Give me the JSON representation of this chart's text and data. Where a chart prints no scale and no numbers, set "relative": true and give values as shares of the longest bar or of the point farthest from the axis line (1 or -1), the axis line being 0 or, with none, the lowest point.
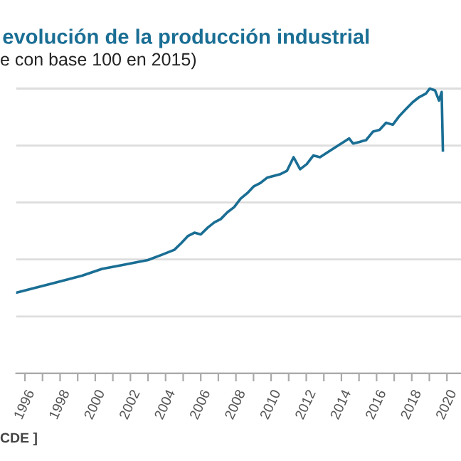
{
  "chart_data": {
    "type": "line",
    "title": "evolución de la producción industrial",
    "subtitle": "e con base 100 en 2015)",
    "annotations": [
      "CDE ]"
    ],
    "relative": true,
    "x": [
      1995.5,
      1996.24,
      1997.74,
      1999.25,
      2000.38,
      2001.5,
      2003.0,
      2003.76,
      2004.5,
      2004.9,
      2005.26,
      2005.64,
      2006.0,
      2006.4,
      2006.77,
      2007.14,
      2007.52,
      2007.9,
      2008.27,
      2008.65,
      2009.02,
      2009.4,
      2009.77,
      2010.5,
      2010.9,
      2011.28,
      2011.65,
      2012.03,
      2012.4,
      2012.78,
      2013.53,
      2014.29,
      2014.44,
      2014.66,
      2015.04,
      2015.4,
      2015.8,
      2016.17,
      2016.54,
      2016.92,
      2017.3,
      2017.67,
      2018.05,
      2018.42,
      2018.8,
      2019.02,
      2019.32,
      2019.55,
      2019.7,
      2019.77
    ],
    "series": [
      {
        "color": "#1a6e94",
        "values": [
          0.283,
          0.295,
          0.319,
          0.343,
          0.367,
          0.38,
          0.398,
          0.416,
          0.434,
          0.458,
          0.482,
          0.494,
          0.488,
          0.512,
          0.53,
          0.542,
          0.566,
          0.584,
          0.614,
          0.633,
          0.657,
          0.669,
          0.687,
          0.699,
          0.711,
          0.759,
          0.717,
          0.735,
          0.765,
          0.759,
          0.789,
          0.819,
          0.825,
          0.807,
          0.813,
          0.819,
          0.849,
          0.855,
          0.88,
          0.873,
          0.904,
          0.928,
          0.952,
          0.97,
          0.982,
          1.0,
          0.994,
          0.958,
          0.988,
          0.783
        ]
      }
    ],
    "xlim": [
      1995.5,
      2020.8
    ],
    "xticks": [
      1996,
      {
        "value": 1997,
        "label": null
      },
      1998,
      {
        "value": 1999,
        "label": null
      },
      2000,
      {
        "value": 2001,
        "label": null
      },
      2002,
      {
        "value": 2003,
        "label": null
      },
      2004,
      {
        "value": 2005,
        "label": null
      },
      2006,
      {
        "value": 2007,
        "label": null
      },
      2008,
      {
        "value": 2009,
        "label": null
      },
      2010,
      {
        "value": 2011,
        "label": null
      },
      2012,
      {
        "value": 2013,
        "label": null
      },
      2014,
      {
        "value": 2015,
        "label": null
      },
      2016,
      {
        "value": 2017,
        "label": null
      },
      2018,
      {
        "value": 2019,
        "label": null
      },
      2020
    ],
    "grid": "y",
    "tick_labels": "x",
    "marker": "none",
    "line_style": "solid"
  }
}
